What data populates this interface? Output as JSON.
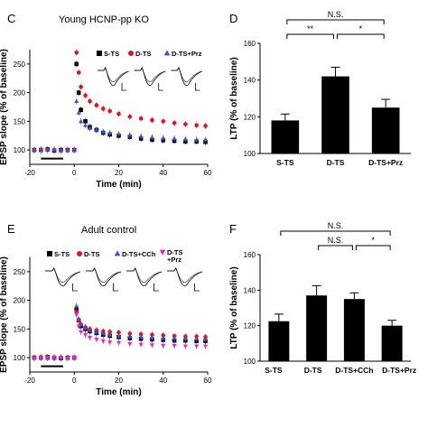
{
  "panels": {
    "C": {
      "letter": "C",
      "title": "Young HCNP-pp KO"
    },
    "D": {
      "letter": "D"
    },
    "E": {
      "letter": "E",
      "title": "Adult control"
    },
    "F": {
      "letter": "F"
    }
  },
  "chart_data": [
    {
      "id": "C",
      "type": "scatter",
      "title": "Young HCNP-pp KO",
      "xlabel": "Time (min)",
      "ylabel": "EPSP slope (% of baseline)",
      "xlim": [
        -20,
        60
      ],
      "ylim": [
        75,
        275
      ],
      "xticks": [
        -20,
        0,
        20,
        40,
        60
      ],
      "yticks": [
        100,
        150,
        200,
        250
      ],
      "legend_position": "top-right",
      "baseline_bar": [
        -15,
        -5
      ],
      "series": [
        {
          "name": "S-TS",
          "color": "#000000",
          "marker": "square",
          "x": [
            -18,
            -15,
            -12,
            -9,
            -6,
            -3,
            0,
            1,
            2,
            3,
            5,
            7,
            10,
            13,
            16,
            20,
            25,
            30,
            35,
            40,
            45,
            50,
            55,
            59
          ],
          "y": [
            100,
            100,
            101,
            99,
            100,
            100,
            100,
            250,
            200,
            170,
            150,
            140,
            135,
            130,
            127,
            125,
            123,
            120,
            118,
            117,
            116,
            115,
            115,
            114
          ]
        },
        {
          "name": "D-TS",
          "color": "#e0141e",
          "marker": "circle",
          "x": [
            -18,
            -15,
            -12,
            -9,
            -6,
            -3,
            0,
            1,
            2,
            3,
            5,
            7,
            10,
            13,
            16,
            20,
            25,
            30,
            35,
            40,
            45,
            50,
            55,
            59
          ],
          "y": [
            100,
            101,
            100,
            100,
            99,
            100,
            100,
            270,
            235,
            210,
            195,
            185,
            178,
            172,
            168,
            163,
            158,
            155,
            152,
            150,
            147,
            145,
            143,
            142
          ]
        },
        {
          "name": "D-TS+Prz",
          "color": "#3f4fd8",
          "marker": "triangle",
          "x": [
            -18,
            -15,
            -12,
            -9,
            -6,
            -3,
            0,
            1,
            2,
            3,
            5,
            7,
            10,
            13,
            16,
            20,
            25,
            30,
            35,
            40,
            45,
            50,
            55,
            59
          ],
          "y": [
            100,
            99,
            100,
            101,
            100,
            100,
            100,
            185,
            165,
            150,
            143,
            138,
            135,
            132,
            130,
            128,
            126,
            124,
            122,
            121,
            120,
            119,
            118,
            118
          ]
        }
      ]
    },
    {
      "id": "D",
      "type": "bar",
      "ylabel": "LTP (% of baseline)",
      "categories": [
        "S-TS",
        "D-TS",
        "D-TS+Prz"
      ],
      "values": [
        118,
        142,
        125
      ],
      "errors": [
        3.5,
        5,
        4.5
      ],
      "ylim": [
        100,
        160
      ],
      "yticks": [
        100,
        120,
        140,
        160
      ],
      "significance": [
        {
          "from": 0,
          "to": 2,
          "label": "N.S.",
          "level": 2
        },
        {
          "from": 0,
          "to": 1,
          "label": "**",
          "level": 1
        },
        {
          "from": 1,
          "to": 2,
          "label": "*",
          "level": 1
        }
      ]
    },
    {
      "id": "E",
      "type": "scatter",
      "title": "Adult control",
      "xlabel": "Time (min)",
      "ylabel": "EPSP slope (% of baseline)",
      "xlim": [
        -20,
        60
      ],
      "ylim": [
        75,
        275
      ],
      "xticks": [
        -20,
        0,
        20,
        40,
        60
      ],
      "yticks": [
        100,
        150,
        200,
        250
      ],
      "legend_position": "top",
      "baseline_bar": [
        -15,
        -5
      ],
      "series": [
        {
          "name": "S-TS",
          "color": "#000000",
          "marker": "square",
          "x": [
            -18,
            -15,
            -12,
            -9,
            -6,
            -3,
            0,
            1,
            2,
            3,
            5,
            7,
            10,
            13,
            16,
            20,
            25,
            30,
            35,
            40,
            45,
            50,
            55,
            59
          ],
          "y": [
            100,
            100,
            101,
            100,
            99,
            100,
            100,
            185,
            165,
            155,
            150,
            146,
            143,
            140,
            138,
            136,
            134,
            133,
            132,
            131,
            130,
            130,
            129,
            129
          ]
        },
        {
          "name": "D-TS",
          "color": "#e0141e",
          "marker": "circle",
          "x": [
            -18,
            -15,
            -12,
            -9,
            -6,
            -3,
            0,
            1,
            2,
            3,
            5,
            7,
            10,
            13,
            16,
            20,
            25,
            30,
            35,
            40,
            45,
            50,
            55,
            59
          ],
          "y": [
            100,
            101,
            100,
            99,
            100,
            100,
            100,
            180,
            165,
            158,
            153,
            150,
            148,
            146,
            145,
            144,
            142,
            141,
            140,
            139,
            138,
            137,
            137,
            136
          ]
        },
        {
          "name": "D-TS+CCh",
          "color": "#3f4fd8",
          "marker": "triangle",
          "x": [
            -18,
            -15,
            -12,
            -9,
            -6,
            -3,
            0,
            1,
            2,
            3,
            5,
            7,
            10,
            13,
            16,
            20,
            25,
            30,
            35,
            40,
            45,
            50,
            55,
            59
          ],
          "y": [
            100,
            100,
            99,
            100,
            101,
            100,
            100,
            190,
            168,
            158,
            152,
            148,
            145,
            142,
            140,
            138,
            137,
            136,
            135,
            134,
            134,
            133,
            133,
            132
          ]
        },
        {
          "name": "D-TS\n+Prz",
          "color": "#e025d0",
          "marker": "triangle-down",
          "x": [
            -18,
            -15,
            -12,
            -9,
            -6,
            -3,
            0,
            1,
            2,
            3,
            5,
            7,
            10,
            13,
            16,
            20,
            25,
            30,
            35,
            40,
            45,
            50,
            55,
            59
          ],
          "y": [
            99,
            100,
            100,
            101,
            100,
            99,
            100,
            175,
            155,
            145,
            140,
            135,
            132,
            129,
            127,
            126,
            124,
            123,
            122,
            121,
            121,
            120,
            120,
            120
          ]
        }
      ]
    },
    {
      "id": "F",
      "type": "bar",
      "ylabel": "LTP (% of baseline)",
      "categories": [
        "S-TS",
        "D-TS",
        "D-TS+CCh",
        "D-TS+Prz"
      ],
      "values": [
        122.5,
        137,
        135,
        120
      ],
      "errors": [
        4,
        5.5,
        3.5,
        3
      ],
      "ylim": [
        100,
        160
      ],
      "yticks": [
        100,
        120,
        140,
        160
      ],
      "significance": [
        {
          "from": 0,
          "to": 3,
          "label": "N.S.",
          "level": 2
        },
        {
          "from": 1,
          "to": 2,
          "label": "N.S.",
          "level": 1
        },
        {
          "from": 2,
          "to": 3,
          "label": "*",
          "level": 1
        }
      ]
    }
  ]
}
